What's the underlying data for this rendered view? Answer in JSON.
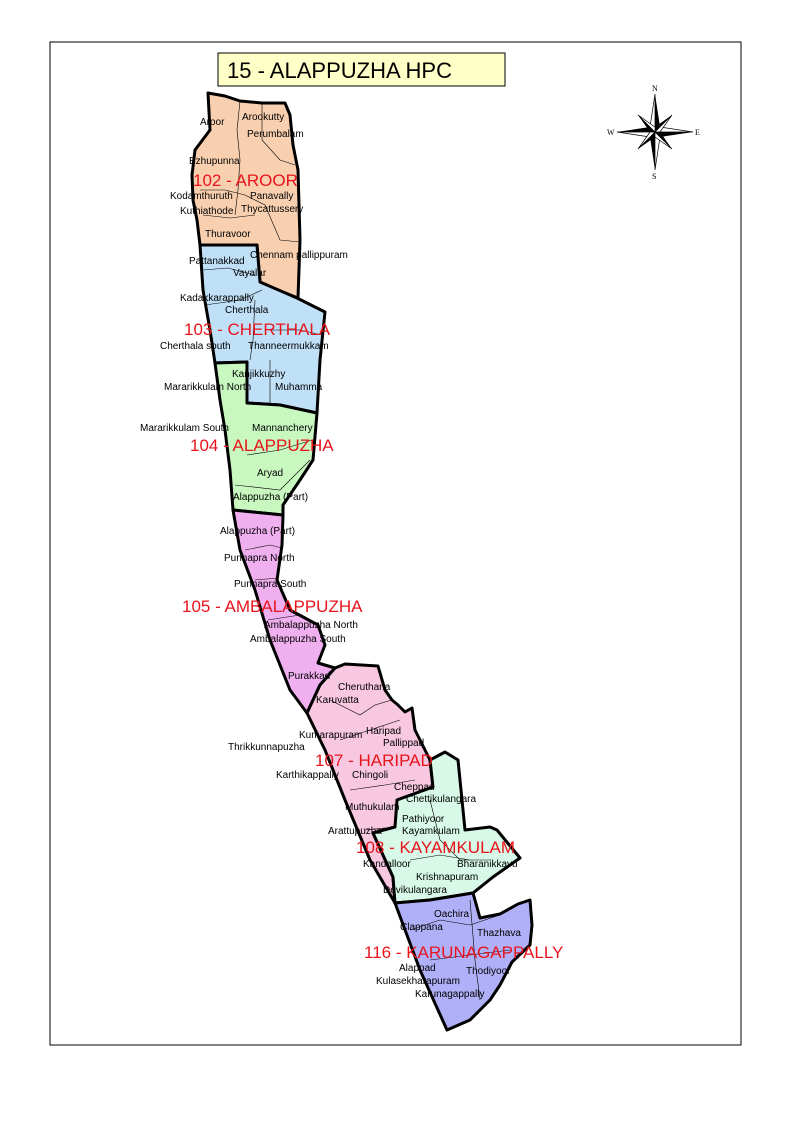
{
  "title": "15 - ALAPPUZHA HPC",
  "compass": {
    "icon": "compass-rose-icon",
    "n": "N",
    "s": "S",
    "e": "E",
    "w": "W"
  },
  "constituencies": [
    {
      "label": "102 - AROOR",
      "color": "#f8d0b0"
    },
    {
      "label": "103 - CHERTHALA",
      "color": "#c0e0f8"
    },
    {
      "label": "104 - ALAPPUZHA",
      "color": "#c8f8c0"
    },
    {
      "label": "105 - AMBALAPPUZHA",
      "color": "#f0b0f0"
    },
    {
      "label": "107 - HARIPAD",
      "color": "#f8c8e0"
    },
    {
      "label": "108 - KAYAMKULAM",
      "color": "#d8f8e8"
    },
    {
      "label": "116 - KARUNAGAPPALLY",
      "color": "#b0b0f8"
    }
  ],
  "villages": [
    "Aroor",
    "Arookutty",
    "Perumbalam",
    "Ezhupunna",
    "Kodamthuruth",
    "Panavally",
    "Kuthiathode",
    "Thycattussery",
    "Thuravoor",
    "Pattanakkad",
    "Chennam pallippuram",
    "Vayalar",
    "Kadakkarappally",
    "Cherthala",
    "Cherthala south",
    "Thanneermukkam",
    "Kanjikkuzhy",
    "Mararikkulam North",
    "Muhamma",
    "Mararikkulam South",
    "Mannanchery",
    "Aryad",
    "Alappuzha (Part)",
    "Alappuzha (Part)",
    "Punnapra North",
    "Punnapra South",
    "Ambalappuzha North",
    "Ambalappuzha South",
    "Purakkad",
    "Cheruthana",
    "Karuvatta",
    "Kumarapuram",
    "Haripad",
    "Pallippad",
    "Thrikkunnapuzha",
    "Karthikappally",
    "Chingoli",
    "Cheppad",
    "Chettikulangara",
    "Muthukulam",
    "Pathiyoor",
    "Arattupuzha",
    "Kayamkulam",
    "Kandalloor",
    "Bharanikkavu",
    "Krishnapuram",
    "Devikulangara",
    "Oachira",
    "Clappana",
    "Thazhava",
    "Alappad",
    "Thodiyoor",
    "Kulasekharapuram",
    "Karunagappally"
  ]
}
